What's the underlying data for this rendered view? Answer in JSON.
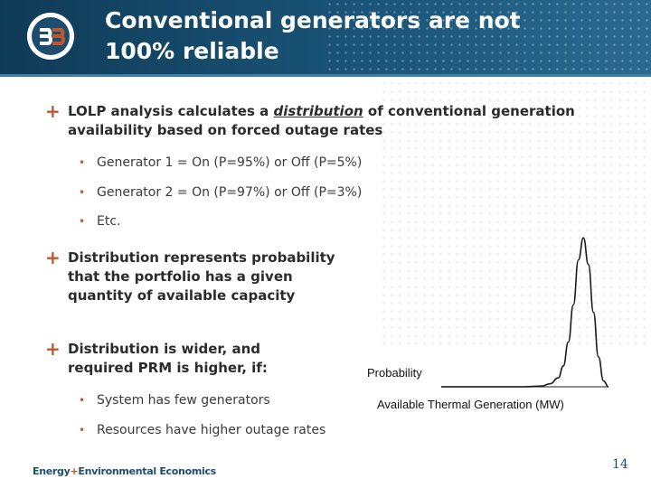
{
  "slide": {
    "title_line1": "Conventional generators are not",
    "title_line2": "100% reliable",
    "page_number": "14",
    "footer_brand_left": "Energy",
    "footer_brand_plus": "+",
    "footer_brand_right": "Environmental Economics"
  },
  "bullets": {
    "b1_pre": "LOLP analysis calculates a ",
    "b1_em": "distribution",
    "b1_post": " of conventional generation availability based on forced outage rates",
    "sub1": "Generator 1 = On (P=95%) or Off (P=5%)",
    "sub2": "Generator 2 = On (P=97%) or Off (P=3%)",
    "sub3": "Etc.",
    "b2": "Distribution represents probability that the portfolio has a given quantity of available capacity",
    "b3": "Distribution is wider, and required PRM is higher, if:",
    "sub4": "System has few generators",
    "sub5": "Resources have higher outage rates"
  },
  "chart_data": {
    "type": "line",
    "ylabel": "Probability",
    "xlabel": "Available Thermal Generation (MW)",
    "grid": false,
    "legend": "none",
    "series": [
      {
        "x": [
          0,
          0.5,
          0.6,
          0.65,
          0.7,
          0.73,
          0.76,
          0.79,
          0.82,
          0.85,
          0.88,
          0.91,
          0.94,
          0.97,
          1.0
        ],
        "values": [
          0,
          0,
          0.005,
          0.02,
          0.06,
          0.14,
          0.3,
          0.55,
          0.85,
          1.0,
          0.82,
          0.5,
          0.2,
          0.04,
          0.0
        ]
      }
    ],
    "line_color": "#1a1a1a"
  }
}
